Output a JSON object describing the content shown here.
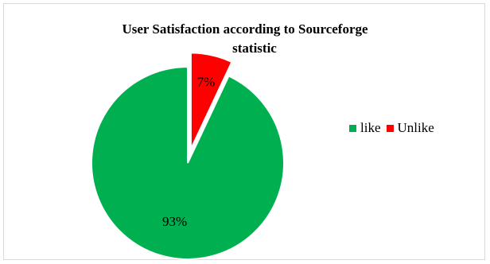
{
  "chart_data": {
    "type": "pie",
    "title": "User Satisfaction according to Sourceforge statistic",
    "title_lines": [
      "User Satisfaction according to Sourceforge",
      "statistic"
    ],
    "categories": [
      "like",
      "Unlike"
    ],
    "values": [
      93,
      7
    ],
    "value_labels": [
      "93%",
      "7%"
    ],
    "colors": [
      "#00b050",
      "#ff0000"
    ],
    "exploded": [
      false,
      true
    ],
    "legend_position": "right"
  }
}
